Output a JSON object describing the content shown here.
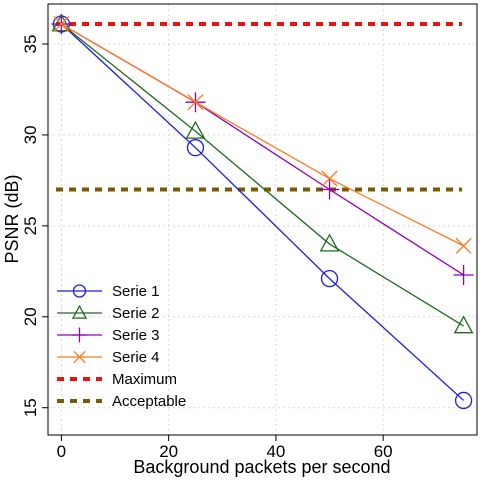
{
  "chart_data": {
    "type": "line",
    "title": "",
    "xlabel": "Background packets per second",
    "ylabel": "PSNR (dB)",
    "xlim": [
      -2.5,
      77.5
    ],
    "ylim": [
      13.5,
      37.2
    ],
    "x_ticks": [
      0,
      20,
      40,
      60
    ],
    "y_ticks": [
      15,
      20,
      25,
      30,
      35
    ],
    "grid": true,
    "legend_position": "bottom-left",
    "series": [
      {
        "name": "Serie 1",
        "color": "#1f1fe0",
        "marker": "circle",
        "style": "solid",
        "x": [
          0,
          25,
          50,
          75
        ],
        "y": [
          36.1,
          29.3,
          22.1,
          15.4
        ]
      },
      {
        "name": "Serie 2",
        "color": "#1f6b1f",
        "marker": "triangle",
        "style": "solid",
        "x": [
          0,
          25,
          50,
          75
        ],
        "y": [
          36.1,
          30.2,
          24.0,
          19.5
        ]
      },
      {
        "name": "Serie 3",
        "color": "#9400b8",
        "marker": "plus",
        "style": "solid",
        "x": [
          0,
          25,
          50,
          75
        ],
        "y": [
          36.1,
          31.8,
          27.0,
          22.3
        ]
      },
      {
        "name": "Serie 4",
        "color": "#ff7a1f",
        "marker": "cross",
        "style": "solid",
        "x": [
          0,
          25,
          50,
          75
        ],
        "y": [
          36.1,
          31.8,
          27.6,
          23.9
        ]
      },
      {
        "name": "Maximum",
        "color": "#ee1111",
        "marker": "none",
        "style": "dashed",
        "x": [
          -2.5,
          77.5
        ],
        "y": [
          36.1,
          36.1
        ]
      },
      {
        "name": "Acceptable",
        "color": "#7a5a00",
        "marker": "none",
        "style": "dashed",
        "x": [
          -2.5,
          77.5
        ],
        "y": [
          27.0,
          27.0
        ]
      }
    ]
  }
}
